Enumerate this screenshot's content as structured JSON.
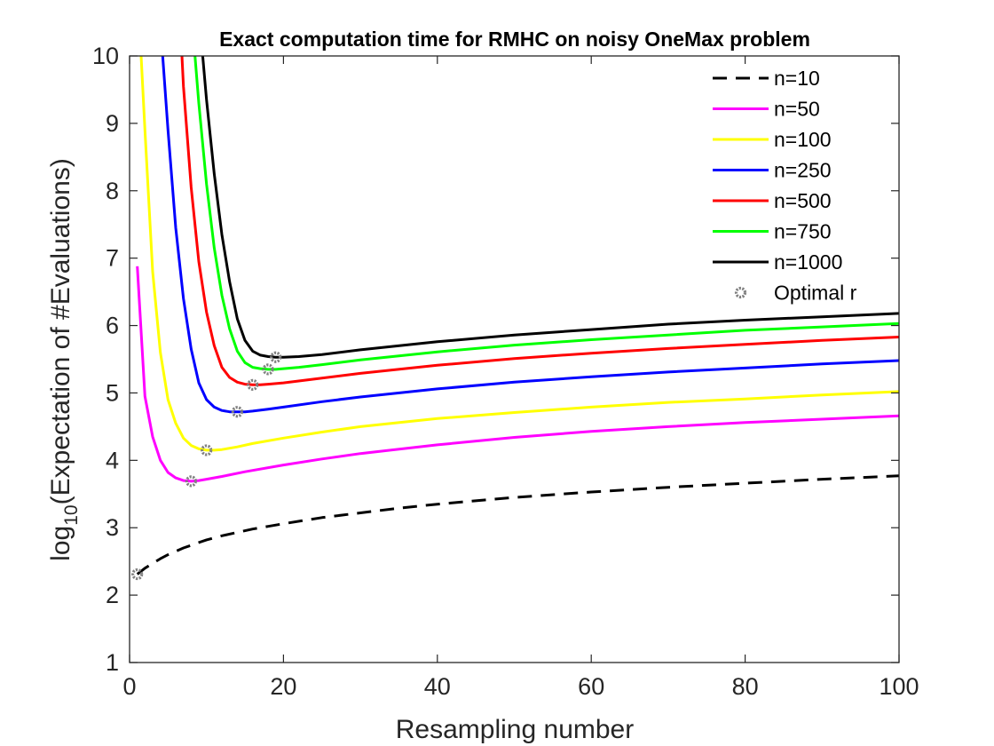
{
  "chart_data": {
    "type": "line",
    "title": "Exact computation time for RMHC on noisy OneMax problem",
    "xlabel": "Resampling number",
    "ylabel": {
      "prefix": "log",
      "subscript": "10",
      "rest": "(Expectation of #Evaluations)"
    },
    "xlim": [
      0,
      100
    ],
    "ylim": [
      1,
      10
    ],
    "xticks": [
      0,
      20,
      40,
      60,
      80,
      100
    ],
    "yticks": [
      1,
      2,
      3,
      4,
      5,
      6,
      7,
      8,
      9,
      10
    ],
    "grid": false,
    "legend_position": "top-right",
    "series": [
      {
        "name": "n=10",
        "color": "#000000",
        "dashed": true,
        "x": [
          1,
          2,
          3,
          4,
          5,
          6,
          7,
          8,
          9,
          10,
          12,
          14,
          16,
          18,
          20,
          25,
          30,
          35,
          40,
          50,
          60,
          70,
          80,
          90,
          100
        ],
        "y": [
          2.31,
          2.4,
          2.47,
          2.54,
          2.6,
          2.65,
          2.7,
          2.74,
          2.78,
          2.82,
          2.88,
          2.93,
          2.98,
          3.02,
          3.06,
          3.15,
          3.22,
          3.29,
          3.35,
          3.45,
          3.53,
          3.6,
          3.66,
          3.72,
          3.77
        ]
      },
      {
        "name": "n=50",
        "color": "#ff00ff",
        "dashed": false,
        "x": [
          1,
          2,
          3,
          4,
          5,
          6,
          7,
          8,
          9,
          10,
          12,
          15,
          20,
          25,
          30,
          40,
          50,
          60,
          70,
          80,
          90,
          100
        ],
        "y": [
          6.88,
          4.95,
          4.35,
          4.0,
          3.82,
          3.74,
          3.7,
          3.69,
          3.7,
          3.72,
          3.76,
          3.83,
          3.93,
          4.02,
          4.1,
          4.23,
          4.34,
          4.43,
          4.5,
          4.56,
          4.61,
          4.66
        ]
      },
      {
        "name": "n=100",
        "color": "#ffff00",
        "dashed": false,
        "x": [
          1.5,
          2,
          3,
          4,
          5,
          6,
          7,
          8,
          9,
          10,
          11,
          12,
          14,
          16,
          20,
          25,
          30,
          40,
          50,
          60,
          70,
          80,
          90,
          100
        ],
        "y": [
          10.0,
          8.9,
          6.8,
          5.6,
          4.9,
          4.55,
          4.33,
          4.22,
          4.17,
          4.15,
          4.15,
          4.16,
          4.2,
          4.25,
          4.33,
          4.42,
          4.5,
          4.62,
          4.71,
          4.79,
          4.86,
          4.91,
          4.97,
          5.02
        ]
      },
      {
        "name": "n=250",
        "color": "#0000ff",
        "dashed": false,
        "x": [
          4.3,
          5,
          6,
          7,
          8,
          9,
          10,
          11,
          12,
          13,
          14,
          15,
          16,
          18,
          20,
          25,
          30,
          40,
          50,
          60,
          70,
          80,
          90,
          100
        ],
        "y": [
          10.0,
          8.9,
          7.45,
          6.4,
          5.65,
          5.15,
          4.9,
          4.79,
          4.74,
          4.72,
          4.72,
          4.72,
          4.73,
          4.76,
          4.79,
          4.87,
          4.94,
          5.06,
          5.16,
          5.24,
          5.31,
          5.37,
          5.43,
          5.48
        ]
      },
      {
        "name": "n=500",
        "color": "#ff0000",
        "dashed": false,
        "x": [
          6.8,
          7,
          8,
          9,
          10,
          11,
          12,
          13,
          14,
          15,
          16,
          17,
          18,
          20,
          25,
          30,
          40,
          50,
          60,
          70,
          80,
          90,
          100
        ],
        "y": [
          10.0,
          9.55,
          8.05,
          6.95,
          6.2,
          5.7,
          5.38,
          5.23,
          5.16,
          5.13,
          5.12,
          5.12,
          5.13,
          5.15,
          5.22,
          5.29,
          5.41,
          5.51,
          5.59,
          5.66,
          5.72,
          5.78,
          5.83
        ]
      },
      {
        "name": "n=750",
        "color": "#00ff00",
        "dashed": false,
        "x": [
          8.5,
          9,
          10,
          11,
          12,
          13,
          14,
          15,
          16,
          17,
          18,
          19,
          20,
          22,
          25,
          30,
          40,
          50,
          60,
          70,
          80,
          90,
          100
        ],
        "y": [
          10.0,
          9.3,
          8.1,
          7.15,
          6.45,
          5.95,
          5.62,
          5.45,
          5.38,
          5.36,
          5.35,
          5.35,
          5.36,
          5.38,
          5.42,
          5.49,
          5.61,
          5.71,
          5.79,
          5.86,
          5.93,
          5.98,
          6.03
        ]
      },
      {
        "name": "n=1000",
        "color": "#000000",
        "dashed": false,
        "x": [
          9.5,
          10,
          11,
          12,
          13,
          14,
          15,
          16,
          17,
          18,
          19,
          20,
          22,
          25,
          30,
          40,
          50,
          60,
          70,
          80,
          90,
          100
        ],
        "y": [
          10.0,
          9.35,
          8.25,
          7.35,
          6.65,
          6.1,
          5.78,
          5.62,
          5.56,
          5.54,
          5.53,
          5.53,
          5.54,
          5.57,
          5.64,
          5.76,
          5.86,
          5.94,
          6.02,
          6.08,
          6.13,
          6.18
        ]
      }
    ],
    "optimal_points": {
      "name": "Optimal r",
      "color": "#808080",
      "x": [
        1,
        8,
        10,
        14,
        16,
        18,
        19
      ],
      "y": [
        2.31,
        3.69,
        4.15,
        4.72,
        5.12,
        5.35,
        5.53
      ]
    }
  }
}
